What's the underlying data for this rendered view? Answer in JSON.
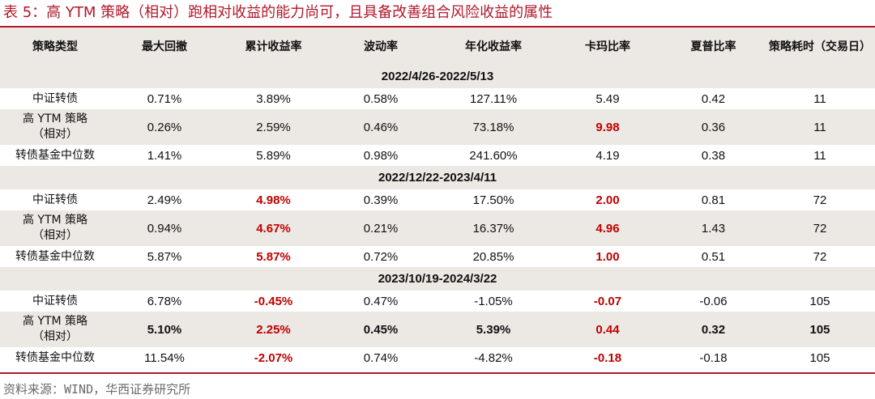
{
  "title": "表 5：高 YTM 策略（相对）跑相对收益的能力尚可，且具备改善组合风险收益的属性",
  "headers": [
    "策略类型",
    "最大回撤",
    "累计收益率",
    "波动率",
    "年化收益率",
    "卡玛比率",
    "夏普比率",
    "策略耗时（交易日）"
  ],
  "periods": [
    {
      "label": "2022/4/26-2022/5/13",
      "rows": [
        {
          "name": "中证转债",
          "cells": [
            "0.71%",
            "3.89%",
            "0.58%",
            "127.11%",
            "5.49",
            "0.42",
            "11"
          ]
        },
        {
          "name_line1": "高 YTM 策略",
          "name_line2": "（相对）",
          "cells": [
            "0.26%",
            "2.59%",
            "0.46%",
            "73.18%",
            "9.98",
            "0.36",
            "11"
          ]
        },
        {
          "name": "转债基金中位数",
          "cells": [
            "1.41%",
            "5.89%",
            "0.98%",
            "241.60%",
            "4.19",
            "0.38",
            "11"
          ]
        }
      ]
    },
    {
      "label": "2022/12/22-2023/4/11",
      "rows": [
        {
          "name": "中证转债",
          "cells": [
            "2.49%",
            "4.98%",
            "0.39%",
            "17.50%",
            "2.00",
            "0.81",
            "72"
          ]
        },
        {
          "name_line1": "高 YTM 策略",
          "name_line2": "（相对）",
          "cells": [
            "0.94%",
            "4.67%",
            "0.21%",
            "16.37%",
            "4.96",
            "1.43",
            "72"
          ]
        },
        {
          "name": "转债基金中位数",
          "cells": [
            "5.87%",
            "5.87%",
            "0.72%",
            "20.85%",
            "1.00",
            "0.51",
            "72"
          ]
        }
      ]
    },
    {
      "label": "2023/10/19-2024/3/22",
      "rows": [
        {
          "name": "中证转债",
          "cells": [
            "6.78%",
            "-0.45%",
            "0.47%",
            "-1.05%",
            "-0.07",
            "-0.06",
            "105"
          ]
        },
        {
          "name_line1": "高 YTM 策略",
          "name_line2": "（相对）",
          "cells": [
            "5.10%",
            "2.25%",
            "0.45%",
            "5.39%",
            "0.44",
            "0.32",
            "105"
          ]
        },
        {
          "name": "转债基金中位数",
          "cells": [
            "11.54%",
            "-2.07%",
            "0.74%",
            "-4.82%",
            "-0.18",
            "-0.18",
            "105"
          ]
        }
      ]
    }
  ],
  "source": "资料来源：WIND，华西证券研究所",
  "colors": {
    "accent_red": "#b2182b",
    "highlight_red": "#c00000",
    "shade": "#ece8e3"
  }
}
